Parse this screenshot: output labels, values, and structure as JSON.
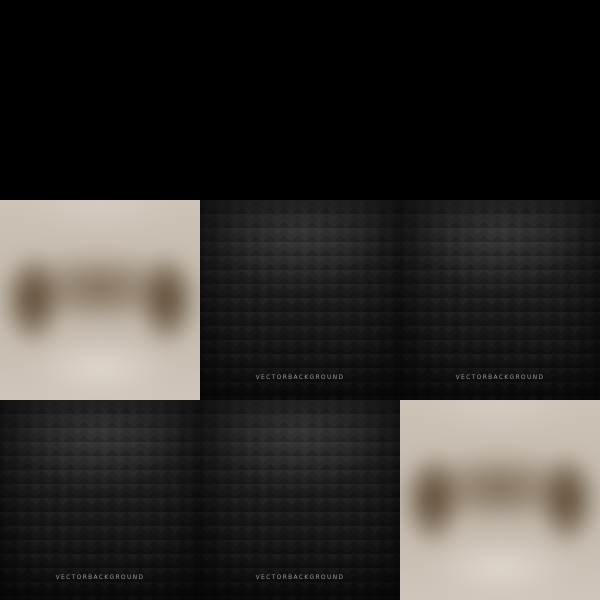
{
  "watermark": {
    "text": "VECTORBACKGROUND"
  },
  "tiles": [
    {
      "type": "photo",
      "image": "blurred-sunglasses-photo"
    },
    {
      "type": "pattern",
      "image": "dark-chevron-pattern",
      "watermark": "VECTORBACKGROUND"
    },
    {
      "type": "pattern",
      "image": "dark-chevron-pattern",
      "watermark": "VECTORBACKGROUND"
    },
    {
      "type": "pattern",
      "image": "dark-chevron-pattern",
      "watermark": "VECTORBACKGROUND"
    },
    {
      "type": "pattern",
      "image": "dark-chevron-pattern",
      "watermark": "VECTORBACKGROUND"
    },
    {
      "type": "photo",
      "image": "blurred-sunglasses-photo"
    }
  ],
  "colors": {
    "page_background": "#000000",
    "pattern_dark": "#1c1c1c",
    "photo_beige": "#c8bfb3",
    "photo_brown": "#5e4a33",
    "watermark_gray": "#9a9a9a"
  }
}
